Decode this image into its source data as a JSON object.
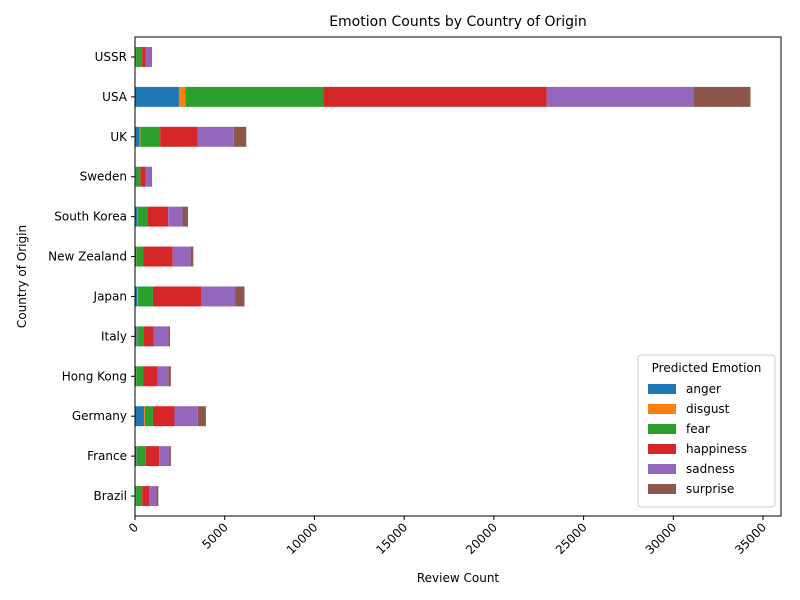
{
  "chart_data": {
    "type": "bar",
    "orientation": "horizontal",
    "stacked": true,
    "title": "Emotion Counts by Country of Origin",
    "xlabel": "Review Count",
    "ylabel": "Country of Origin",
    "xlim": [
      0,
      36000
    ],
    "xticks": [
      0,
      5000,
      10000,
      15000,
      20000,
      25000,
      30000,
      35000
    ],
    "grid": false,
    "legend": {
      "title": "Predicted Emotion",
      "placement": "lower-right"
    },
    "categories": [
      "Brazil",
      "France",
      "Germany",
      "Hong Kong",
      "Italy",
      "Japan",
      "New Zealand",
      "South Korea",
      "Sweden",
      "UK",
      "USA",
      "USSR"
    ],
    "series": [
      {
        "name": "anger",
        "color": "#1f77b4",
        "values": [
          50,
          80,
          500,
          60,
          100,
          120,
          60,
          120,
          30,
          250,
          2450,
          50
        ]
      },
      {
        "name": "disgust",
        "color": "#ff7f0e",
        "values": [
          10,
          15,
          50,
          10,
          20,
          30,
          10,
          20,
          10,
          50,
          350,
          10
        ]
      },
      {
        "name": "fear",
        "color": "#2ca02c",
        "values": [
          340,
          505,
          450,
          380,
          380,
          850,
          380,
          560,
          260,
          1100,
          7700,
          340
        ]
      },
      {
        "name": "happiness",
        "color": "#d62728",
        "values": [
          400,
          750,
          1200,
          800,
          550,
          2700,
          1650,
          1150,
          300,
          2100,
          12450,
          200
        ]
      },
      {
        "name": "sadness",
        "color": "#9467bd",
        "values": [
          400,
          550,
          1300,
          600,
          800,
          1900,
          1000,
          800,
          300,
          2000,
          8200,
          300
        ]
      },
      {
        "name": "surprise",
        "color": "#8c564b",
        "values": [
          100,
          100,
          450,
          150,
          100,
          500,
          150,
          300,
          50,
          700,
          3150,
          50
        ]
      }
    ]
  }
}
